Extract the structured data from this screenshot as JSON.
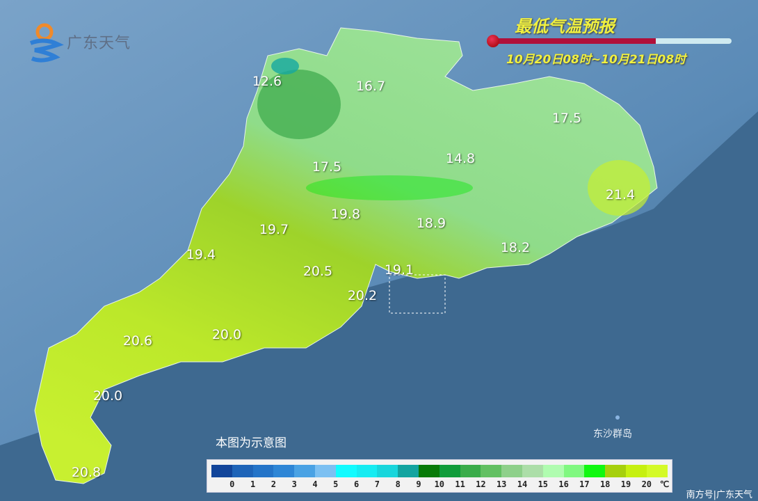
{
  "logo": {
    "text": "广东天气"
  },
  "header": {
    "title": "最低气温预报",
    "period": "10月20日08时~10月21日08时"
  },
  "stations": [
    {
      "value": "12.6"
    },
    {
      "value": "16.7"
    },
    {
      "value": "17.5"
    },
    {
      "value": "17.5"
    },
    {
      "value": "14.8"
    },
    {
      "value": "21.4"
    },
    {
      "value": "19.8"
    },
    {
      "value": "19.7"
    },
    {
      "value": "18.9"
    },
    {
      "value": "18.2"
    },
    {
      "value": "19.4"
    },
    {
      "value": "20.5"
    },
    {
      "value": "19.1"
    },
    {
      "value": "20.2"
    },
    {
      "value": "20.6"
    },
    {
      "value": "20.0"
    },
    {
      "value": "20.0"
    },
    {
      "value": "20.8"
    }
  ],
  "note": "本图为示意图",
  "island_label": "东沙群岛",
  "legend": {
    "unit": "℃",
    "labels": [
      "0",
      "1",
      "2",
      "3",
      "4",
      "5",
      "6",
      "7",
      "8",
      "9",
      "10",
      "11",
      "12",
      "13",
      "14",
      "15",
      "16",
      "17",
      "18",
      "19",
      "20"
    ],
    "colors": [
      "#12459a",
      "#1e64b8",
      "#2474c8",
      "#2e86d6",
      "#4aa2e4",
      "#7cc0f2",
      "#12fbff",
      "#16ecf2",
      "#18d6dc",
      "#13a4a0",
      "#087a08",
      "#109c3a",
      "#3aac4a",
      "#62c062",
      "#8ed08a",
      "#acdea8",
      "#b0fcb0",
      "#80f880",
      "#10f810",
      "#a6d00c",
      "#c6f010",
      "#d4fa28"
    ]
  },
  "credit": "南方号|广东天气"
}
